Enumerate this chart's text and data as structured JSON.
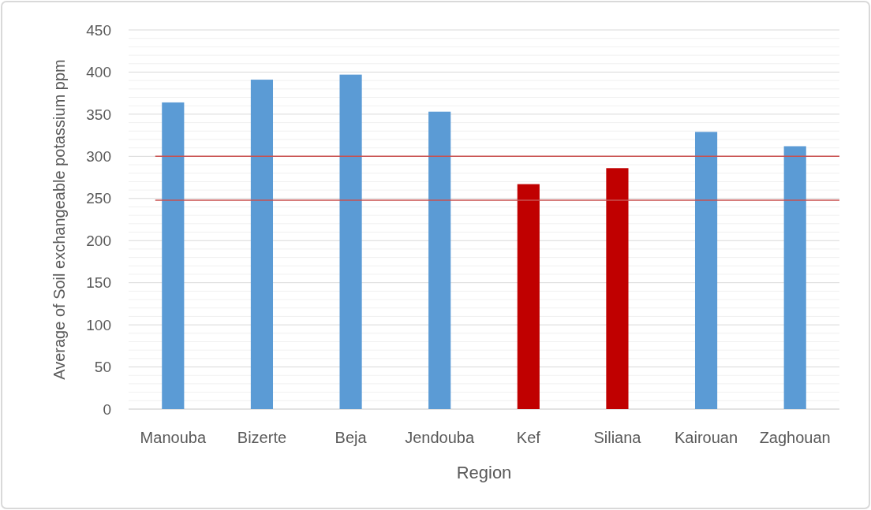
{
  "chart_data": {
    "type": "bar",
    "xlabel": "Region",
    "ylabel": "Average of Soil exchangeable potassium ppm",
    "categories": [
      "Manouba",
      "Bizerte",
      "Beja",
      "Jendouba",
      "Kef",
      "Siliana",
      "Kairouan",
      "Zaghouan"
    ],
    "values": [
      364,
      391,
      397,
      353,
      267,
      286,
      329,
      312
    ],
    "colors": [
      "#5b9bd5",
      "#5b9bd5",
      "#5b9bd5",
      "#5b9bd5",
      "#c00000",
      "#c00000",
      "#5b9bd5",
      "#5b9bd5"
    ],
    "ylim": [
      0,
      450
    ],
    "yticks": [
      0,
      {
        "value": 10,
        "label": null
      },
      {
        "value": 20,
        "label": null
      },
      {
        "value": 30,
        "label": null
      },
      {
        "value": 40,
        "label": null
      },
      50,
      {
        "value": 60,
        "label": null
      },
      {
        "value": 70,
        "label": null
      },
      {
        "value": 80,
        "label": null
      },
      {
        "value": 90,
        "label": null
      },
      100,
      {
        "value": 110,
        "label": null
      },
      {
        "value": 120,
        "label": null
      },
      {
        "value": 130,
        "label": null
      },
      {
        "value": 140,
        "label": null
      },
      150,
      {
        "value": 160,
        "label": null
      },
      {
        "value": 170,
        "label": null
      },
      {
        "value": 180,
        "label": null
      },
      {
        "value": 190,
        "label": null
      },
      200,
      {
        "value": 210,
        "label": null
      },
      {
        "value": 220,
        "label": null
      },
      {
        "value": 230,
        "label": null
      },
      {
        "value": 240,
        "label": null
      },
      250,
      {
        "value": 260,
        "label": null
      },
      {
        "value": 270,
        "label": null
      },
      {
        "value": 280,
        "label": null
      },
      {
        "value": 290,
        "label": null
      },
      300,
      {
        "value": 310,
        "label": null
      },
      {
        "value": 320,
        "label": null
      },
      {
        "value": 330,
        "label": null
      },
      {
        "value": 340,
        "label": null
      },
      350,
      {
        "value": 360,
        "label": null
      },
      {
        "value": 370,
        "label": null
      },
      {
        "value": 380,
        "label": null
      },
      {
        "value": 390,
        "label": null
      },
      400,
      {
        "value": 410,
        "label": null
      },
      {
        "value": 420,
        "label": null
      },
      {
        "value": 430,
        "label": null
      },
      {
        "value": 440,
        "label": null
      },
      450
    ],
    "grid": true,
    "ref_lines": [
      {
        "axis": "y",
        "value": 300,
        "color": "#c9504f"
      },
      {
        "axis": "y",
        "value": 248,
        "color": "#c9504f"
      }
    ]
  }
}
